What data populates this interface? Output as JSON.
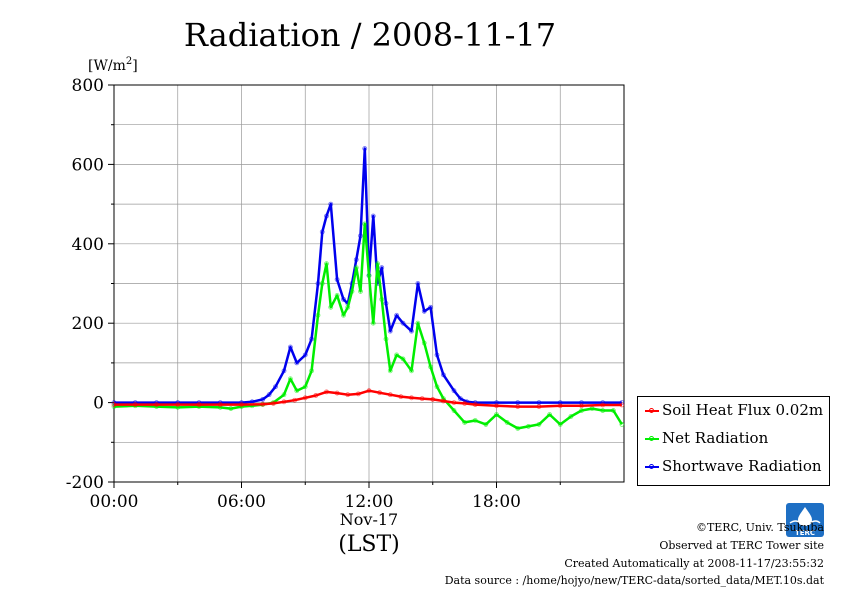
{
  "chart_data": {
    "type": "line",
    "title": "Radiation / 2008-11-17",
    "ylabel_unit": "[W/m",
    "ylabel_sup": "2",
    "ylabel_close": "]",
    "ylim": [
      -200,
      800
    ],
    "yticks": [
      -200,
      0,
      200,
      400,
      600,
      800
    ],
    "ytick_labels": [
      "-200",
      "0",
      "200",
      "400",
      "600",
      "800"
    ],
    "xlim": [
      0,
      24
    ],
    "xticks": [
      0,
      6,
      12,
      18
    ],
    "xtick_labels": [
      "00:00",
      "06:00",
      "12:00",
      "18:00"
    ],
    "xlabel_date": "Nov-17",
    "xlabel": "(LST)",
    "grid": true,
    "legend_position": "right-bottom",
    "series": [
      {
        "name": "Soil Heat Flux 0.02m",
        "color": "#ff0000",
        "x": [
          0,
          1,
          2,
          3,
          4,
          5,
          6,
          7,
          7.5,
          8,
          8.5,
          9,
          9.5,
          10,
          10.5,
          11,
          11.5,
          12,
          12.5,
          13,
          13.5,
          14,
          14.5,
          15,
          15.5,
          16,
          16.5,
          17,
          18,
          19,
          20,
          21,
          22,
          23,
          23.9
        ],
        "y": [
          -5,
          -5,
          -5,
          -5,
          -5,
          -5,
          -5,
          -4,
          -2,
          2,
          6,
          12,
          18,
          27,
          24,
          20,
          22,
          30,
          25,
          20,
          15,
          12,
          10,
          8,
          4,
          0,
          -2,
          -5,
          -8,
          -10,
          -10,
          -8,
          -8,
          -6,
          -6
        ]
      },
      {
        "name": "Net Radiation",
        "color": "#00ee00",
        "x": [
          0,
          1,
          2,
          3,
          4,
          5,
          5.5,
          6,
          6.5,
          7,
          7.5,
          8,
          8.3,
          8.6,
          9,
          9.3,
          9.6,
          9.8,
          10,
          10.2,
          10.5,
          10.8,
          11,
          11.2,
          11.4,
          11.6,
          11.8,
          12,
          12.2,
          12.4,
          12.6,
          12.8,
          13,
          13.3,
          13.6,
          14,
          14.3,
          14.6,
          14.9,
          15.2,
          15.5,
          16,
          16.5,
          17,
          17.5,
          18,
          18.5,
          19,
          19.5,
          20,
          20.5,
          21,
          21.5,
          22,
          22.5,
          23,
          23.5,
          23.9
        ],
        "y": [
          -10,
          -8,
          -10,
          -12,
          -10,
          -12,
          -15,
          -10,
          -8,
          -5,
          0,
          20,
          60,
          30,
          40,
          80,
          220,
          300,
          350,
          240,
          270,
          220,
          240,
          280,
          340,
          280,
          450,
          320,
          200,
          350,
          260,
          160,
          80,
          120,
          110,
          80,
          200,
          150,
          90,
          40,
          10,
          -20,
          -50,
          -45,
          -55,
          -30,
          -50,
          -65,
          -60,
          -55,
          -30,
          -55,
          -35,
          -20,
          -15,
          -20,
          -20,
          -55
        ]
      },
      {
        "name": "Shortwave Radiation",
        "color": "#0000ee",
        "x": [
          0,
          1,
          2,
          3,
          4,
          5,
          6,
          6.5,
          7,
          7.3,
          7.6,
          8,
          8.3,
          8.6,
          9,
          9.3,
          9.6,
          9.8,
          10,
          10.2,
          10.5,
          10.8,
          11,
          11.2,
          11.4,
          11.6,
          11.8,
          12,
          12.2,
          12.4,
          12.6,
          12.8,
          13,
          13.3,
          13.6,
          14,
          14.3,
          14.6,
          14.9,
          15.2,
          15.5,
          16,
          16.3,
          16.6,
          17,
          18,
          19,
          20,
          21,
          22,
          23,
          23.9
        ],
        "y": [
          0,
          0,
          0,
          0,
          0,
          0,
          0,
          2,
          8,
          20,
          40,
          80,
          140,
          100,
          120,
          160,
          300,
          430,
          470,
          500,
          310,
          260,
          250,
          300,
          360,
          420,
          640,
          320,
          470,
          300,
          340,
          250,
          180,
          220,
          200,
          180,
          300,
          230,
          240,
          120,
          70,
          30,
          10,
          2,
          0,
          0,
          0,
          0,
          0,
          0,
          0,
          0
        ]
      }
    ]
  },
  "footer": {
    "copyright": "©TERC, Univ. Tsukuba",
    "observed": "Observed at TERC Tower site",
    "created": "Created Automatically at 2008-11-17/23:55:32",
    "source": "Data source : /home/hojyo/new/TERC-data/sorted_data/MET.10s.dat",
    "logo_text": "TERC"
  }
}
